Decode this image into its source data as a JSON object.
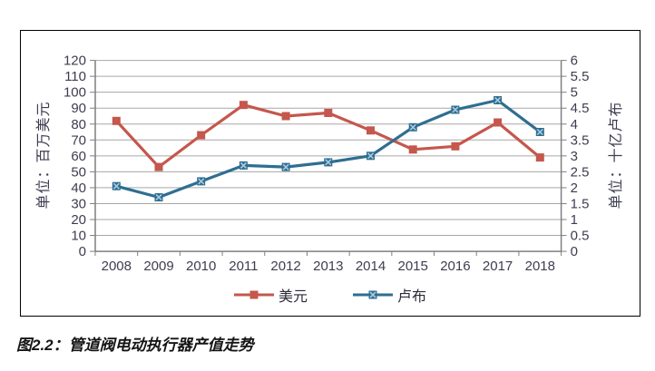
{
  "figure": {
    "caption": "图2.2：管道阀电动执行器产值走势"
  },
  "colors": {
    "usd_red": "#c5574c",
    "rub_blue": "#2e6e91",
    "gridline": "#a7a7a7",
    "axis_line": "#7f7f7f",
    "tick_text": "#3d3d51",
    "frame_border": "#000000"
  },
  "chart_data": {
    "type": "line",
    "title": "",
    "categories": [
      "2008",
      "2009",
      "2010",
      "2011",
      "2012",
      "2013",
      "2014",
      "2015",
      "2016",
      "2017",
      "2018"
    ],
    "series": [
      {
        "id": "usd",
        "name": "美元",
        "axis": "left",
        "color": "#c5574c",
        "marker": "square",
        "values": [
          82,
          53,
          73,
          92,
          85,
          87,
          76,
          64,
          66,
          81,
          59
        ]
      },
      {
        "id": "rub",
        "name": "卢布",
        "axis": "right",
        "color": "#2e6e91",
        "marker": "x-square",
        "marker_inner": "#a9c9db",
        "values": [
          2.05,
          1.7,
          2.2,
          2.7,
          2.65,
          2.8,
          3.0,
          3.9,
          4.45,
          4.75,
          3.75
        ]
      }
    ],
    "left_axis": {
      "title": "单位：百万美元",
      "min": 0,
      "max": 120,
      "step": 10,
      "ticks": [
        "0",
        "10",
        "20",
        "30",
        "40",
        "50",
        "60",
        "70",
        "80",
        "90",
        "100",
        "110",
        "120"
      ]
    },
    "right_axis": {
      "title": "单位：十亿卢布",
      "min": 0,
      "max": 6,
      "step": 0.5,
      "ticks": [
        "0",
        "0.5",
        "1",
        "1.5",
        "2",
        "2.5",
        "3",
        "3.5",
        "4",
        "4.5",
        "5",
        "5.5",
        "6"
      ]
    },
    "legend": {
      "position": "bottom",
      "entries": [
        "美元",
        "卢布"
      ]
    },
    "grid": true
  }
}
